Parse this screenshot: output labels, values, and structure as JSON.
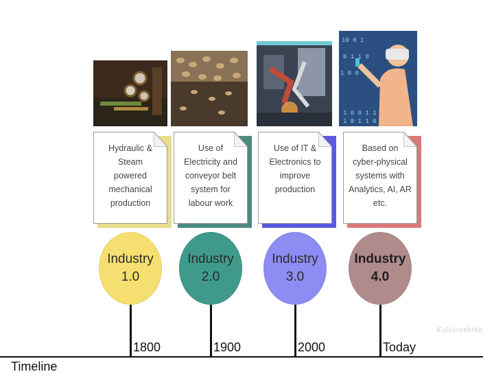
{
  "stages": [
    {
      "lines": [
        "Hydraulic &",
        "Steam",
        "powered",
        "mechanical",
        "production"
      ],
      "circle_lines": [
        "Industry",
        "1.0"
      ],
      "year": "1800",
      "circle_color": "#f6df71",
      "accent_color": "#e8dd8a",
      "image_icon": "steam-engine-photo"
    },
    {
      "lines": [
        "Use of",
        "Electricity and",
        "conveyor belt",
        "system for",
        "labour work"
      ],
      "circle_lines": [
        "Industry",
        "2.0"
      ],
      "year": "1900",
      "circle_color": "#3f9a8b",
      "accent_color": "#4e8a80",
      "image_icon": "conveyor-belt-photo"
    },
    {
      "lines": [
        "Use of IT &",
        "Electronics to",
        "improve",
        "production"
      ],
      "circle_lines": [
        "Industry",
        "3.0"
      ],
      "year": "2000",
      "circle_color": "#8c8cf2",
      "accent_color": "#5a5ae0",
      "image_icon": "robot-arm-photo"
    },
    {
      "lines": [
        "Based on",
        "cyber-physical",
        "systems with",
        "Analytics, AI, AR",
        "etc."
      ],
      "circle_lines": [
        "Industry",
        "4.0"
      ],
      "year": "Today",
      "circle_color": "#b08b8c",
      "accent_color": "#d97a7a",
      "image_icon": "vr-headset-photo"
    }
  ],
  "axis_label": "Timeline"
}
